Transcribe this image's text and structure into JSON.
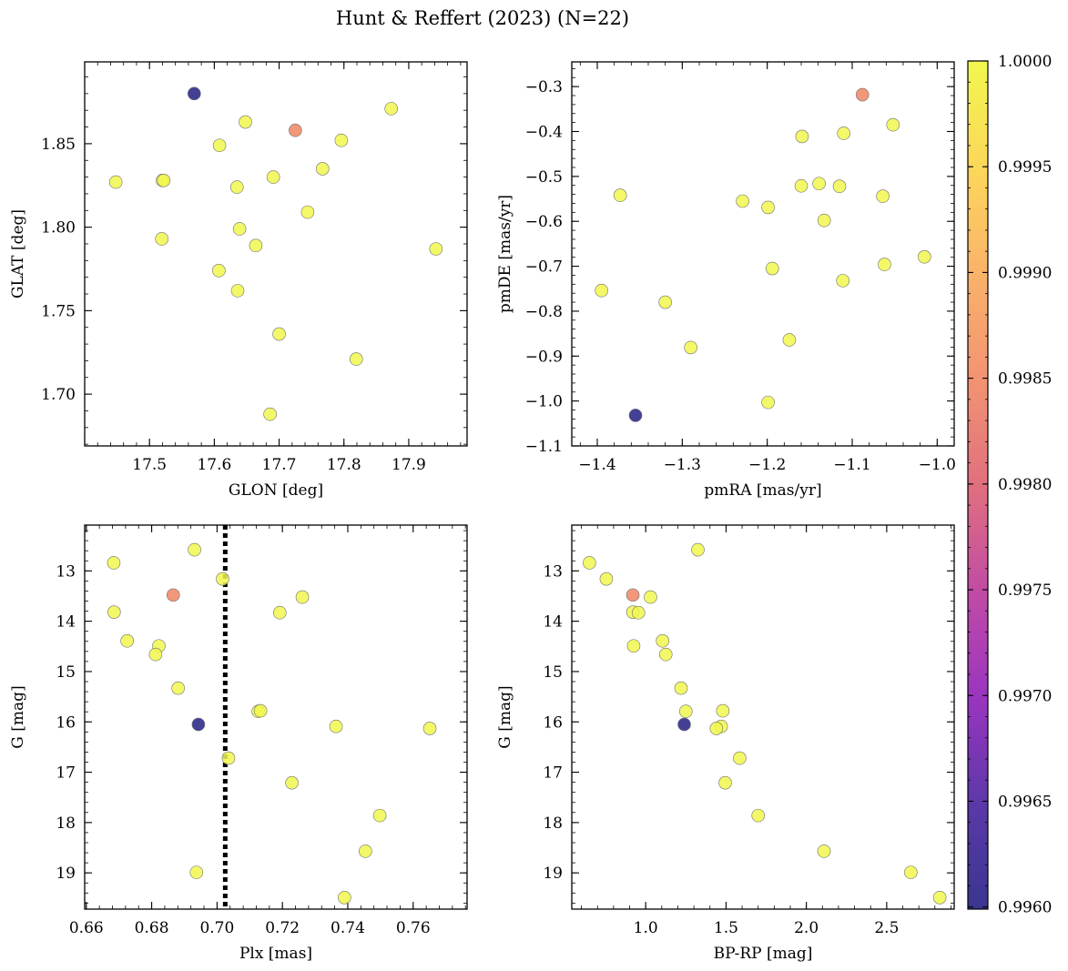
{
  "title": "Hunt & Reffert (2023) (N=22)",
  "colorbar": {
    "min": 0.99599,
    "max": 1.0,
    "ticks": [
      "0.9960",
      "0.9965",
      "0.9970",
      "0.9975",
      "0.9980",
      "0.9985",
      "0.9990",
      "0.9995",
      "1.0000"
    ],
    "tick_values": [
      0.996,
      0.9965,
      0.997,
      0.9975,
      0.998,
      0.9985,
      0.999,
      0.9995,
      1.0
    ],
    "colors": [
      "#3a3690",
      "#5a38a8",
      "#9a35c0",
      "#c04aa6",
      "#e0707e",
      "#f29272",
      "#f9b36a",
      "#fcd65a",
      "#f1f74e"
    ]
  },
  "chart_data": [
    {
      "type": "scatter",
      "xlabel": "GLON [deg]",
      "ylabel": "GLAT [deg]",
      "xlim": [
        17.4,
        17.99
      ],
      "ylim": [
        1.669,
        1.899
      ],
      "xticks": [
        17.5,
        17.6,
        17.7,
        17.8,
        17.9
      ],
      "xticklabels": [
        "17.5",
        "17.6",
        "17.7",
        "17.8",
        "17.9"
      ],
      "yticks": [
        1.7,
        1.75,
        1.8,
        1.85
      ],
      "yticklabels": [
        "1.70",
        "1.75",
        "1.80",
        "1.85"
      ],
      "points": [
        {
          "x": 17.569,
          "y": 1.88,
          "c": 0.99599
        },
        {
          "x": 17.725,
          "y": 1.858,
          "c": 0.99848
        },
        {
          "x": 17.448,
          "y": 1.827,
          "c": 1.0
        },
        {
          "x": 17.52,
          "y": 1.828,
          "c": 1.0
        },
        {
          "x": 17.522,
          "y": 1.828,
          "c": 1.0
        },
        {
          "x": 17.608,
          "y": 1.849,
          "c": 1.0
        },
        {
          "x": 17.648,
          "y": 1.863,
          "c": 1.0
        },
        {
          "x": 17.635,
          "y": 1.824,
          "c": 1.0
        },
        {
          "x": 17.691,
          "y": 1.83,
          "c": 1.0
        },
        {
          "x": 17.767,
          "y": 1.835,
          "c": 1.0
        },
        {
          "x": 17.796,
          "y": 1.852,
          "c": 1.0
        },
        {
          "x": 17.873,
          "y": 1.871,
          "c": 1.0
        },
        {
          "x": 17.744,
          "y": 1.809,
          "c": 1.0
        },
        {
          "x": 17.639,
          "y": 1.799,
          "c": 1.0
        },
        {
          "x": 17.519,
          "y": 1.793,
          "c": 1.0
        },
        {
          "x": 17.664,
          "y": 1.789,
          "c": 1.0
        },
        {
          "x": 17.942,
          "y": 1.787,
          "c": 1.0
        },
        {
          "x": 17.607,
          "y": 1.774,
          "c": 1.0
        },
        {
          "x": 17.636,
          "y": 1.762,
          "c": 1.0
        },
        {
          "x": 17.7,
          "y": 1.736,
          "c": 1.0
        },
        {
          "x": 17.819,
          "y": 1.721,
          "c": 1.0
        },
        {
          "x": 17.686,
          "y": 1.688,
          "c": 1.0
        }
      ]
    },
    {
      "type": "scatter",
      "xlabel": "pmRA [mas/yr]",
      "ylabel": "pmDE [mas/yr]",
      "xlim": [
        -1.43,
        -0.98
      ],
      "ylim": [
        -1.1,
        -0.245
      ],
      "xticks": [
        -1.4,
        -1.3,
        -1.2,
        -1.1,
        -1.0
      ],
      "xticklabels": [
        "−1.4",
        "−1.3",
        "−1.2",
        "−1.1",
        "−1.0"
      ],
      "yticks": [
        -1.1,
        -1.0,
        -0.9,
        -0.8,
        -0.7,
        -0.6,
        -0.5,
        -0.4,
        -0.3
      ],
      "yticklabels": [
        "−1.1",
        "−1.0",
        "−0.9",
        "−0.8",
        "−0.7",
        "−0.6",
        "−0.5",
        "−0.4",
        "−0.3"
      ],
      "points": [
        {
          "x": -1.355,
          "y": -1.032,
          "c": 0.99599
        },
        {
          "x": -1.088,
          "y": -0.318,
          "c": 0.99848
        },
        {
          "x": -1.052,
          "y": -0.385,
          "c": 1.0
        },
        {
          "x": -1.159,
          "y": -0.411,
          "c": 1.0
        },
        {
          "x": -1.11,
          "y": -0.404,
          "c": 1.0
        },
        {
          "x": -1.373,
          "y": -0.542,
          "c": 1.0
        },
        {
          "x": -1.229,
          "y": -0.555,
          "c": 1.0
        },
        {
          "x": -1.199,
          "y": -0.569,
          "c": 1.0
        },
        {
          "x": -1.16,
          "y": -0.521,
          "c": 1.0
        },
        {
          "x": -1.139,
          "y": -0.516,
          "c": 1.0
        },
        {
          "x": -1.115,
          "y": -0.522,
          "c": 1.0
        },
        {
          "x": -1.064,
          "y": -0.544,
          "c": 1.0
        },
        {
          "x": -1.133,
          "y": -0.598,
          "c": 1.0
        },
        {
          "x": -1.062,
          "y": -0.696,
          "c": 1.0
        },
        {
          "x": -1.015,
          "y": -0.679,
          "c": 1.0
        },
        {
          "x": -1.194,
          "y": -0.705,
          "c": 1.0
        },
        {
          "x": -1.111,
          "y": -0.732,
          "c": 1.0
        },
        {
          "x": -1.395,
          "y": -0.754,
          "c": 1.0
        },
        {
          "x": -1.32,
          "y": -0.78,
          "c": 1.0
        },
        {
          "x": -1.174,
          "y": -0.864,
          "c": 1.0
        },
        {
          "x": -1.29,
          "y": -0.881,
          "c": 1.0
        },
        {
          "x": -1.199,
          "y": -1.003,
          "c": 1.0
        }
      ]
    },
    {
      "type": "scatter",
      "xlabel": "Plx [mas]",
      "ylabel": "G [mag]",
      "xlim": [
        0.6595,
        0.7765
      ],
      "ylim": [
        19.72,
        12.09
      ],
      "y_inverted": true,
      "xticks": [
        0.66,
        0.68,
        0.7,
        0.72,
        0.74,
        0.76
      ],
      "xticklabels": [
        "0.66",
        "0.68",
        "0.70",
        "0.72",
        "0.74",
        "0.76"
      ],
      "yticks": [
        13,
        14,
        15,
        16,
        17,
        18,
        19
      ],
      "yticklabels": [
        "13",
        "14",
        "15",
        "16",
        "17",
        "18",
        "19"
      ],
      "vline": {
        "x": 0.7025,
        "style": "dotted"
      },
      "points": [
        {
          "x": 0.6943,
          "y": 16.05,
          "c": 0.99599
        },
        {
          "x": 0.6866,
          "y": 13.48,
          "c": 0.99848
        },
        {
          "x": 0.6684,
          "y": 12.84,
          "c": 1.0
        },
        {
          "x": 0.6931,
          "y": 12.58,
          "c": 1.0
        },
        {
          "x": 0.7017,
          "y": 13.16,
          "c": 1.0
        },
        {
          "x": 0.7261,
          "y": 13.52,
          "c": 1.0
        },
        {
          "x": 0.6685,
          "y": 13.82,
          "c": 1.0
        },
        {
          "x": 0.7192,
          "y": 13.83,
          "c": 1.0
        },
        {
          "x": 0.6725,
          "y": 14.39,
          "c": 1.0
        },
        {
          "x": 0.6822,
          "y": 14.49,
          "c": 1.0
        },
        {
          "x": 0.6812,
          "y": 14.66,
          "c": 1.0
        },
        {
          "x": 0.6881,
          "y": 15.33,
          "c": 1.0
        },
        {
          "x": 0.7126,
          "y": 15.79,
          "c": 1.0
        },
        {
          "x": 0.7133,
          "y": 15.78,
          "c": 1.0
        },
        {
          "x": 0.7364,
          "y": 16.09,
          "c": 1.0
        },
        {
          "x": 0.7651,
          "y": 16.13,
          "c": 1.0
        },
        {
          "x": 0.7035,
          "y": 16.72,
          "c": 1.0
        },
        {
          "x": 0.7229,
          "y": 17.21,
          "c": 1.0
        },
        {
          "x": 0.7498,
          "y": 17.86,
          "c": 1.0
        },
        {
          "x": 0.7454,
          "y": 18.57,
          "c": 1.0
        },
        {
          "x": 0.6937,
          "y": 18.99,
          "c": 1.0
        },
        {
          "x": 0.739,
          "y": 19.49,
          "c": 1.0
        }
      ]
    },
    {
      "type": "scatter",
      "xlabel": "BP-RP [mag]",
      "ylabel": "G [mag]",
      "xlim": [
        0.54,
        2.92
      ],
      "ylim": [
        19.72,
        12.09
      ],
      "y_inverted": true,
      "xticks": [
        1.0,
        1.5,
        2.0,
        2.5
      ],
      "xticklabels": [
        "1.0",
        "1.5",
        "2.0",
        "2.5"
      ],
      "yticks": [
        13,
        14,
        15,
        16,
        17,
        18,
        19
      ],
      "yticklabels": [
        "13",
        "14",
        "15",
        "16",
        "17",
        "18",
        "19"
      ],
      "points": [
        {
          "x": 1.24,
          "y": 16.05,
          "c": 0.99599
        },
        {
          "x": 0.92,
          "y": 13.48,
          "c": 0.99848
        },
        {
          "x": 0.65,
          "y": 12.84,
          "c": 1.0
        },
        {
          "x": 1.325,
          "y": 12.58,
          "c": 1.0
        },
        {
          "x": 0.755,
          "y": 13.16,
          "c": 1.0
        },
        {
          "x": 1.03,
          "y": 13.52,
          "c": 1.0
        },
        {
          "x": 0.92,
          "y": 13.82,
          "c": 1.0
        },
        {
          "x": 0.955,
          "y": 13.83,
          "c": 1.0
        },
        {
          "x": 1.105,
          "y": 14.39,
          "c": 1.0
        },
        {
          "x": 0.925,
          "y": 14.49,
          "c": 1.0
        },
        {
          "x": 1.125,
          "y": 14.66,
          "c": 1.0
        },
        {
          "x": 1.22,
          "y": 15.33,
          "c": 1.0
        },
        {
          "x": 1.25,
          "y": 15.79,
          "c": 1.0
        },
        {
          "x": 1.48,
          "y": 15.78,
          "c": 1.0
        },
        {
          "x": 1.47,
          "y": 16.09,
          "c": 1.0
        },
        {
          "x": 1.44,
          "y": 16.13,
          "c": 1.0
        },
        {
          "x": 1.585,
          "y": 16.72,
          "c": 1.0
        },
        {
          "x": 1.495,
          "y": 17.21,
          "c": 1.0
        },
        {
          "x": 1.7,
          "y": 17.86,
          "c": 1.0
        },
        {
          "x": 2.11,
          "y": 18.57,
          "c": 1.0
        },
        {
          "x": 2.65,
          "y": 18.99,
          "c": 1.0
        },
        {
          "x": 2.83,
          "y": 19.49,
          "c": 1.0
        }
      ]
    }
  ]
}
